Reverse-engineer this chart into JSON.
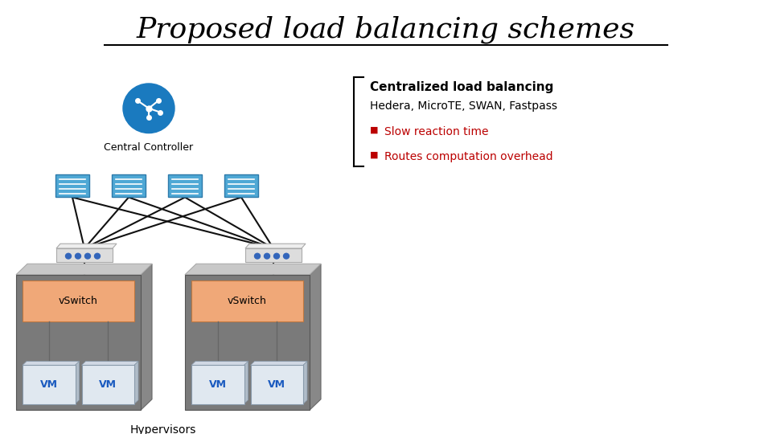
{
  "title": "Proposed load balancing schemes",
  "title_fontsize": 26,
  "bg_color": "#ffffff",
  "centralized_title": "Centralized load balancing",
  "centralized_subtitle": "Hedera, MicroTE, SWAN, Fastpass",
  "bullet1": "Slow reaction time",
  "bullet2": "Routes computation overhead",
  "bullet_color": "#bb0000",
  "text_color": "#000000",
  "central_controller_label": "Central Controller",
  "hypervisors_label": "Hypervisors",
  "vswitch_label": "vSwitch",
  "vm_label": "VM",
  "controller_icon_color": "#1a7abf",
  "switch_color": "#4fa8d5",
  "switch_dark": "#2d7aaa",
  "phys_switch_color": "#dddddd",
  "phys_switch_dark": "#aaaaaa",
  "vswitch_bg_color": "#f0a878",
  "hypervisor_bg_color": "#7a7a7a",
  "hypervisor_light": "#c0c0c0",
  "vm_bg_color": "#e0e8f0",
  "vm_text_color": "#1a5abf",
  "line_color": "#111111"
}
